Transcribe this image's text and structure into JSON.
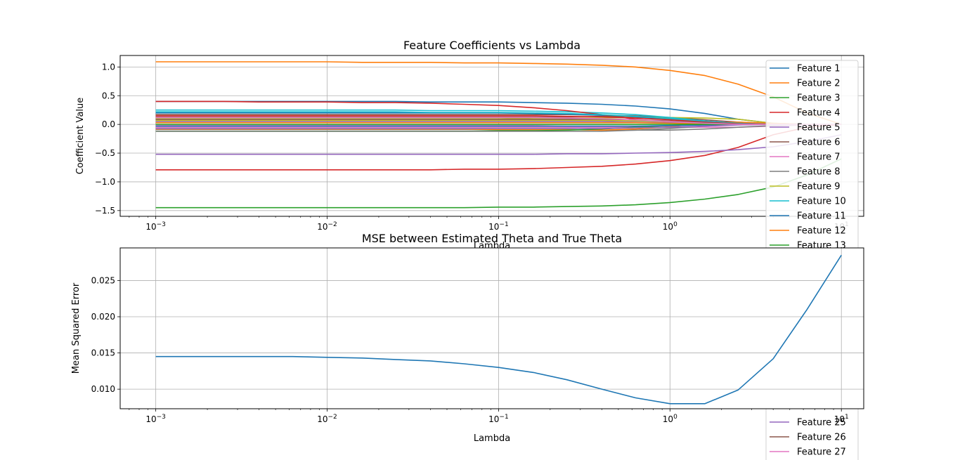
{
  "chart_data": [
    {
      "type": "line",
      "title": "Feature Coefficients vs Lambda",
      "xlabel": "Lambda",
      "ylabel": "Coefficient Value",
      "xscale": "log",
      "xlim": [
        0.00062,
        13.5
      ],
      "ylim": [
        -1.6,
        1.2
      ],
      "grid": true,
      "legend": "upper right",
      "x": [
        0.001,
        0.0016,
        0.0025,
        0.004,
        0.0063,
        0.01,
        0.016,
        0.025,
        0.04,
        0.063,
        0.1,
        0.16,
        0.25,
        0.4,
        0.63,
        1.0,
        1.6,
        2.5,
        4.0,
        6.3,
        10.0
      ],
      "xticks": [
        {
          "v": 0.001,
          "base": "10",
          "exp": "−3"
        },
        {
          "v": 0.01,
          "base": "10",
          "exp": "−2"
        },
        {
          "v": 0.1,
          "base": "10",
          "exp": "−1"
        },
        {
          "v": 1,
          "base": "10",
          "exp": "0"
        },
        {
          "v": 10,
          "base": "10",
          "exp": "1"
        }
      ],
      "yticks": [
        {
          "v": 1.0,
          "label": "1.0"
        },
        {
          "v": 0.5,
          "label": "0.5"
        },
        {
          "v": 0.0,
          "label": "0.0"
        },
        {
          "v": -0.5,
          "label": "−0.5"
        },
        {
          "v": -1.0,
          "label": "−1.0"
        },
        {
          "v": -1.5,
          "label": "−1.5"
        }
      ],
      "series": [
        {
          "name": "Feature 1",
          "color": "#1f77b4",
          "values": [
            0.4,
            0.4,
            0.4,
            0.4,
            0.4,
            0.4,
            0.4,
            0.4,
            0.39,
            0.39,
            0.39,
            0.38,
            0.37,
            0.35,
            0.32,
            0.27,
            0.19,
            0.09,
            0.02,
            0.0,
            0.0
          ]
        },
        {
          "name": "Feature 2",
          "color": "#ff7f0e",
          "values": [
            1.09,
            1.09,
            1.09,
            1.09,
            1.09,
            1.09,
            1.08,
            1.08,
            1.08,
            1.07,
            1.07,
            1.06,
            1.05,
            1.03,
            1.0,
            0.94,
            0.85,
            0.7,
            0.48,
            0.2,
            0.0
          ]
        },
        {
          "name": "Feature 3",
          "color": "#2ca02c",
          "values": [
            -1.45,
            -1.45,
            -1.45,
            -1.45,
            -1.45,
            -1.45,
            -1.45,
            -1.45,
            -1.45,
            -1.45,
            -1.44,
            -1.44,
            -1.43,
            -1.42,
            -1.4,
            -1.36,
            -1.3,
            -1.22,
            -1.09,
            -0.88,
            -0.6
          ]
        },
        {
          "name": "Feature 4",
          "color": "#d62728",
          "values": [
            -0.79,
            -0.79,
            -0.79,
            -0.79,
            -0.79,
            -0.79,
            -0.79,
            -0.79,
            -0.79,
            -0.78,
            -0.78,
            -0.77,
            -0.75,
            -0.73,
            -0.69,
            -0.63,
            -0.54,
            -0.4,
            -0.18,
            -0.05,
            0.0
          ]
        },
        {
          "name": "Feature 5",
          "color": "#9467bd",
          "values": [
            -0.52,
            -0.52,
            -0.52,
            -0.52,
            -0.52,
            -0.52,
            -0.52,
            -0.52,
            -0.52,
            -0.52,
            -0.52,
            -0.52,
            -0.51,
            -0.51,
            -0.5,
            -0.49,
            -0.47,
            -0.44,
            -0.39,
            -0.3,
            -0.18
          ]
        },
        {
          "name": "Feature 6",
          "color": "#8c564b",
          "values": [
            0.17,
            0.17,
            0.17,
            0.17,
            0.17,
            0.17,
            0.17,
            0.17,
            0.17,
            0.17,
            0.17,
            0.17,
            0.17,
            0.16,
            0.15,
            0.12,
            0.08,
            0.04,
            0.01,
            0.0,
            0.0
          ]
        },
        {
          "name": "Feature 7",
          "color": "#e377c2",
          "values": [
            -0.05,
            -0.05,
            -0.05,
            -0.05,
            -0.05,
            -0.05,
            -0.05,
            -0.05,
            -0.05,
            -0.05,
            -0.05,
            -0.05,
            -0.05,
            -0.05,
            -0.05,
            -0.05,
            -0.05,
            -0.05,
            -0.03,
            -0.01,
            0.0
          ]
        },
        {
          "name": "Feature 8",
          "color": "#7f7f7f",
          "values": [
            -0.09,
            -0.09,
            -0.09,
            -0.09,
            -0.09,
            -0.09,
            -0.09,
            -0.09,
            -0.09,
            -0.09,
            -0.09,
            -0.09,
            -0.09,
            -0.1,
            -0.1,
            -0.1,
            -0.08,
            -0.05,
            -0.02,
            0.0,
            0.0
          ]
        },
        {
          "name": "Feature 9",
          "color": "#bcbd22",
          "values": [
            0.1,
            0.1,
            0.1,
            0.1,
            0.1,
            0.1,
            0.1,
            0.1,
            0.1,
            0.1,
            0.1,
            0.11,
            0.11,
            0.11,
            0.12,
            0.12,
            0.11,
            0.09,
            0.02,
            0.0,
            0.0
          ]
        },
        {
          "name": "Feature 10",
          "color": "#17becf",
          "values": [
            0.25,
            0.25,
            0.25,
            0.25,
            0.25,
            0.25,
            0.25,
            0.25,
            0.24,
            0.24,
            0.24,
            0.23,
            0.22,
            0.2,
            0.17,
            0.12,
            0.06,
            0.02,
            0.0,
            0.0,
            0.0
          ]
        },
        {
          "name": "Feature 11",
          "color": "#1f77b4",
          "values": [
            0.2,
            0.2,
            0.2,
            0.2,
            0.2,
            0.2,
            0.2,
            0.2,
            0.2,
            0.2,
            0.2,
            0.19,
            0.18,
            0.16,
            0.13,
            0.09,
            0.05,
            0.02,
            0.0,
            0.0,
            0.0
          ]
        },
        {
          "name": "Feature 12",
          "color": "#ff7f0e",
          "values": [
            -0.08,
            -0.08,
            -0.08,
            -0.08,
            -0.08,
            -0.08,
            -0.08,
            -0.08,
            -0.08,
            -0.08,
            -0.09,
            -0.09,
            -0.09,
            -0.1,
            -0.08,
            -0.04,
            0.02,
            0.04,
            0.02,
            0.0,
            0.0
          ]
        },
        {
          "name": "Feature 13",
          "color": "#2ca02c",
          "values": [
            -0.12,
            -0.12,
            -0.12,
            -0.12,
            -0.12,
            -0.12,
            -0.12,
            -0.12,
            -0.12,
            -0.12,
            -0.11,
            -0.11,
            -0.1,
            -0.08,
            -0.05,
            -0.02,
            0.0,
            0.0,
            0.0,
            0.0,
            0.0
          ]
        },
        {
          "color": "#d62728",
          "values": [
            0.4,
            0.4,
            0.4,
            0.39,
            0.39,
            0.39,
            0.38,
            0.38,
            0.37,
            0.35,
            0.33,
            0.29,
            0.24,
            0.17,
            0.09,
            0.04,
            0.01,
            0.0,
            0.0,
            0.0,
            0.0
          ]
        },
        {
          "color": "#9467bd",
          "values": [
            0.05,
            0.05,
            0.05,
            0.05,
            0.05,
            0.05,
            0.05,
            0.05,
            0.05,
            0.05,
            0.05,
            0.05,
            0.05,
            0.05,
            0.04,
            0.03,
            0.02,
            0.01,
            0.0,
            0.0,
            0.0
          ]
        },
        {
          "color": "#8c564b",
          "values": [
            0.13,
            0.13,
            0.13,
            0.13,
            0.13,
            0.13,
            0.13,
            0.13,
            0.13,
            0.13,
            0.13,
            0.13,
            0.13,
            0.14,
            0.14,
            0.1,
            0.05,
            0.02,
            0.0,
            0.0,
            0.0
          ]
        },
        {
          "color": "#e377c2",
          "values": [
            -0.02,
            -0.02,
            -0.02,
            -0.02,
            -0.02,
            -0.02,
            -0.02,
            -0.02,
            -0.02,
            -0.02,
            -0.02,
            -0.02,
            -0.03,
            -0.03,
            -0.03,
            -0.02,
            -0.01,
            0.0,
            0.0,
            0.0,
            0.0
          ]
        },
        {
          "color": "#7f7f7f",
          "values": [
            -0.12,
            -0.12,
            -0.12,
            -0.12,
            -0.12,
            -0.12,
            -0.12,
            -0.12,
            -0.12,
            -0.12,
            -0.12,
            -0.12,
            -0.12,
            -0.12,
            -0.1,
            -0.07,
            -0.03,
            0.0,
            0.0,
            0.0,
            0.0
          ]
        },
        {
          "color": "#bcbd22",
          "values": [
            0.07,
            0.07,
            0.07,
            0.07,
            0.07,
            0.07,
            0.07,
            0.07,
            0.07,
            0.07,
            0.07,
            0.07,
            0.07,
            0.07,
            0.06,
            0.05,
            0.03,
            0.01,
            0.0,
            0.0,
            0.0
          ]
        },
        {
          "color": "#17becf",
          "values": [
            0.22,
            0.22,
            0.22,
            0.22,
            0.22,
            0.22,
            0.22,
            0.22,
            0.21,
            0.21,
            0.21,
            0.2,
            0.19,
            0.17,
            0.14,
            0.1,
            0.05,
            0.02,
            0.0,
            0.0,
            0.0
          ]
        },
        {
          "color": "#1f77b4",
          "values": [
            -0.03,
            -0.03,
            -0.03,
            -0.03,
            -0.03,
            -0.03,
            -0.03,
            -0.03,
            -0.03,
            -0.03,
            -0.03,
            -0.03,
            -0.03,
            -0.03,
            -0.03,
            -0.02,
            -0.01,
            0.0,
            0.0,
            0.0,
            0.0
          ]
        },
        {
          "color": "#ff7f0e",
          "values": [
            0.03,
            0.03,
            0.03,
            0.03,
            0.03,
            0.03,
            0.03,
            0.03,
            0.03,
            0.03,
            0.03,
            0.03,
            0.03,
            0.03,
            0.03,
            0.02,
            0.01,
            0.0,
            0.0,
            0.0,
            0.0
          ]
        },
        {
          "color": "#2ca02c",
          "values": [
            0.0,
            0.0,
            0.0,
            0.0,
            0.0,
            0.0,
            0.0,
            0.0,
            0.0,
            0.0,
            0.0,
            0.0,
            0.0,
            0.0,
            0.0,
            0.0,
            0.0,
            0.0,
            0.0,
            0.0,
            0.0
          ]
        },
        {
          "color": "#d62728",
          "values": [
            0.15,
            0.15,
            0.15,
            0.15,
            0.15,
            0.15,
            0.15,
            0.15,
            0.15,
            0.15,
            0.15,
            0.15,
            0.14,
            0.13,
            0.11,
            0.08,
            0.04,
            0.01,
            0.0,
            0.0,
            0.0
          ]
        },
        {
          "name": "Feature 25",
          "color": "#9467bd",
          "values": [
            -0.07,
            -0.07,
            -0.07,
            -0.07,
            -0.07,
            -0.07,
            -0.07,
            -0.07,
            -0.07,
            -0.07,
            -0.07,
            -0.07,
            -0.07,
            -0.07,
            -0.06,
            -0.05,
            -0.03,
            -0.01,
            0.0,
            0.0,
            0.0
          ]
        },
        {
          "name": "Feature 26",
          "color": "#8c564b",
          "values": [
            0.09,
            0.09,
            0.09,
            0.09,
            0.09,
            0.09,
            0.09,
            0.09,
            0.09,
            0.09,
            0.09,
            0.09,
            0.09,
            0.09,
            0.08,
            0.06,
            0.03,
            0.01,
            0.0,
            0.0,
            0.0
          ]
        },
        {
          "name": "Feature 27",
          "color": "#e377c2",
          "values": [
            0.12,
            0.12,
            0.12,
            0.12,
            0.12,
            0.12,
            0.12,
            0.12,
            0.12,
            0.12,
            0.12,
            0.12,
            0.11,
            0.1,
            0.08,
            0.05,
            0.02,
            0.0,
            0.0,
            0.0,
            0.0
          ]
        }
      ]
    },
    {
      "type": "line",
      "title": "MSE between Estimated Theta and True Theta",
      "xlabel": "Lambda",
      "ylabel": "Mean Squared Error",
      "xscale": "log",
      "xlim": [
        0.00062,
        13.5
      ],
      "ylim": [
        0.0073,
        0.0295
      ],
      "grid": true,
      "x": [
        0.001,
        0.0016,
        0.0025,
        0.004,
        0.0063,
        0.01,
        0.016,
        0.025,
        0.04,
        0.063,
        0.1,
        0.16,
        0.25,
        0.4,
        0.63,
        1.0,
        1.6,
        2.5,
        4.0,
        6.3,
        10.0
      ],
      "xticks": [
        {
          "v": 0.001,
          "base": "10",
          "exp": "−3"
        },
        {
          "v": 0.01,
          "base": "10",
          "exp": "−2"
        },
        {
          "v": 0.1,
          "base": "10",
          "exp": "−1"
        },
        {
          "v": 1,
          "base": "10",
          "exp": "0"
        },
        {
          "v": 10,
          "base": "10",
          "exp": "1"
        }
      ],
      "yticks": [
        {
          "v": 0.025,
          "label": "0.025"
        },
        {
          "v": 0.02,
          "label": "0.020"
        },
        {
          "v": 0.015,
          "label": "0.015"
        },
        {
          "v": 0.01,
          "label": "0.010"
        }
      ],
      "series": [
        {
          "color": "#1f77b4",
          "values": [
            0.0145,
            0.0145,
            0.0145,
            0.0145,
            0.0145,
            0.0144,
            0.0143,
            0.0141,
            0.0139,
            0.0135,
            0.013,
            0.0123,
            0.0113,
            0.01,
            0.0088,
            0.008,
            0.008,
            0.0099,
            0.0142,
            0.021,
            0.0285
          ]
        }
      ]
    }
  ]
}
